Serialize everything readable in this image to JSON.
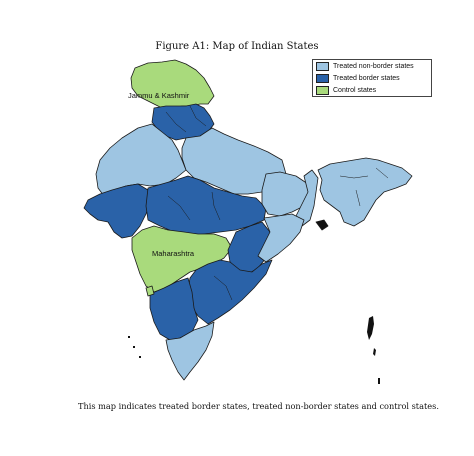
{
  "figure": {
    "title": "Figure A1:  Map of Indian States",
    "caption": "This map indicates treated border states, treated non-border states and control states."
  },
  "legend": {
    "items": [
      {
        "label": "Treated non-border states",
        "color": "#9ec5e2"
      },
      {
        "label": "Treated border states",
        "color": "#2a62a8"
      },
      {
        "label": "Control states",
        "color": "#a9da7c"
      }
    ]
  },
  "map_labels": {
    "jammu_kashmir": "Jammu & Kashmir",
    "maharashtra": "Maharashtra"
  },
  "regions": [
    {
      "name": "jammu-kashmir-region",
      "category": "control"
    },
    {
      "name": "himachal-punjab-region",
      "category": "border"
    },
    {
      "name": "rajasthan-region",
      "category": "non-border"
    },
    {
      "name": "uttar-pradesh-region",
      "category": "non-border"
    },
    {
      "name": "gujarat-region",
      "category": "border"
    },
    {
      "name": "madhya-pradesh-region",
      "category": "border"
    },
    {
      "name": "maharashtra-region",
      "category": "control"
    },
    {
      "name": "chhattisgarh-region",
      "category": "border"
    },
    {
      "name": "bihar-jharkhand-region",
      "category": "non-border"
    },
    {
      "name": "odisha-region",
      "category": "non-border"
    },
    {
      "name": "telangana-andhra-region",
      "category": "border"
    },
    {
      "name": "karnataka-region",
      "category": "border"
    },
    {
      "name": "tamil-nadu-region",
      "category": "non-border"
    },
    {
      "name": "goa-region",
      "category": "control"
    },
    {
      "name": "north-east-region",
      "category": "non-border"
    },
    {
      "name": "west-bengal-region",
      "category": "non-border"
    },
    {
      "name": "tripura-region",
      "category": "other"
    }
  ],
  "colors": {
    "non-border": "#9ec5e2",
    "border": "#2a62a8",
    "control": "#a9da7c",
    "other": "#111111"
  }
}
